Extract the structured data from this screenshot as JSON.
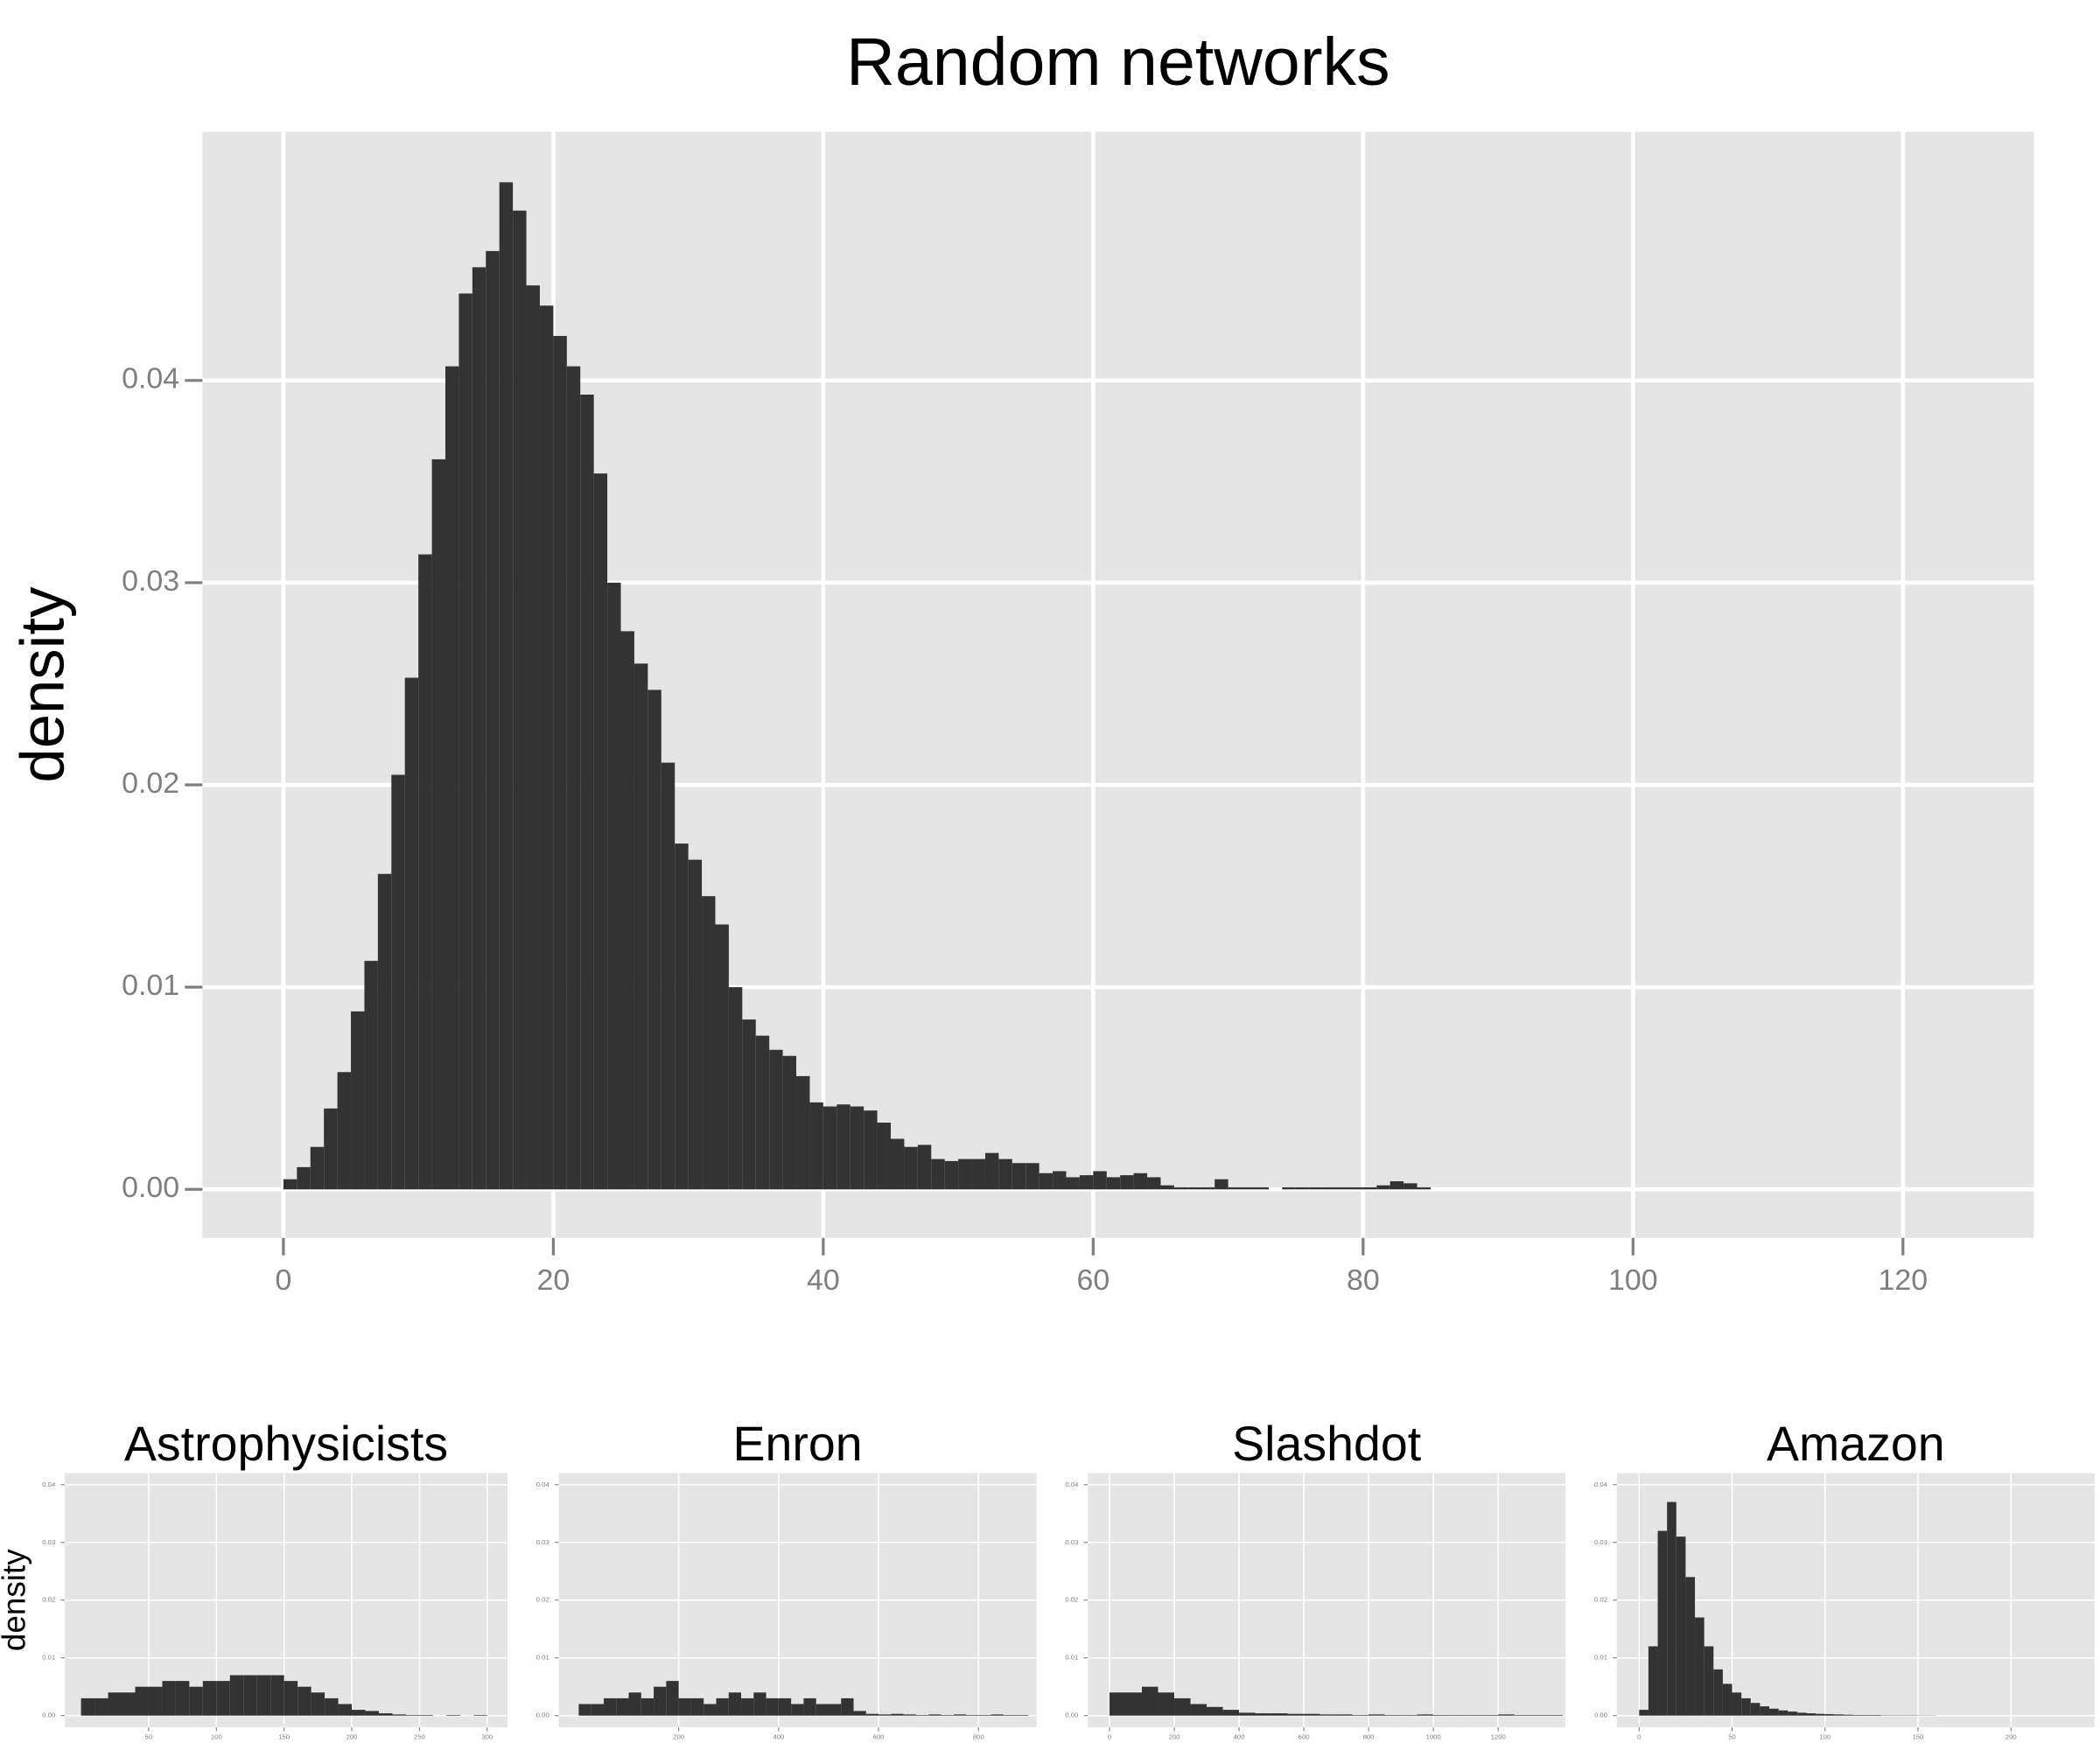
{
  "chart_data": [
    {
      "type": "histogram",
      "title": "Random networks",
      "y_label": "density",
      "color": "#333333",
      "grid": true,
      "bins": [
        0,
        1,
        2,
        3,
        4,
        5,
        6,
        7,
        8,
        9,
        10,
        11,
        12,
        13,
        14,
        15,
        16,
        17,
        18,
        19,
        20,
        21,
        22,
        23,
        24,
        25,
        26,
        27,
        28,
        29,
        30,
        31,
        32,
        33,
        34,
        35,
        36,
        37,
        38,
        39,
        40,
        41,
        42,
        43,
        44,
        45,
        46,
        47,
        48,
        49,
        50,
        51,
        52,
        53,
        54,
        55,
        56,
        57,
        58,
        59,
        60,
        61,
        62,
        63,
        64,
        65,
        66,
        67,
        68,
        69,
        70,
        71,
        72,
        73,
        74,
        75,
        76,
        77,
        78,
        79,
        80,
        81,
        82,
        83,
        84,
        85
      ],
      "values": [
        0.0005,
        0.0011,
        0.0021,
        0.004,
        0.0058,
        0.0088,
        0.0113,
        0.0156,
        0.0205,
        0.0253,
        0.0314,
        0.0361,
        0.0407,
        0.0443,
        0.0456,
        0.0464,
        0.0498,
        0.0484,
        0.0447,
        0.0437,
        0.0422,
        0.0407,
        0.0393,
        0.0354,
        0.03,
        0.0276,
        0.026,
        0.0247,
        0.0211,
        0.0171,
        0.0163,
        0.0145,
        0.0131,
        0.01,
        0.0084,
        0.0076,
        0.0069,
        0.0066,
        0.0056,
        0.0043,
        0.0041,
        0.0042,
        0.0041,
        0.0039,
        0.0033,
        0.0025,
        0.0021,
        0.0022,
        0.0015,
        0.0014,
        0.0015,
        0.0015,
        0.0018,
        0.0015,
        0.0013,
        0.0013,
        0.0008,
        0.0009,
        0.0006,
        0.0007,
        0.0009,
        0.0006,
        0.0007,
        0.0008,
        0.0006,
        0.0002,
        0.0001,
        0.0001,
        0.0001,
        0.0005,
        0.0001,
        0.0001,
        0.0001,
        0,
        0.0001,
        0.0001,
        0.0001,
        0.0001,
        0.0001,
        0.0001,
        0.0001,
        0.0002,
        0.0004,
        0.0003,
        0.0001
      ],
      "xlim": [
        -6,
        129.7
      ],
      "ylim": [
        -0.0024,
        0.0523
      ],
      "xticks": [
        0,
        20,
        40,
        60,
        80,
        100,
        120
      ],
      "yticks": [
        {
          "value": 0,
          "label": "0.00"
        },
        0.01,
        0.02,
        0.03,
        0.04
      ]
    },
    {
      "type": "histogram",
      "title": "Astrophysicists",
      "y_label": "density",
      "color": "#333333",
      "grid": true,
      "bins": [
        0,
        10,
        20,
        30,
        40,
        50,
        60,
        70,
        80,
        90,
        100,
        110,
        120,
        130,
        140,
        150,
        160,
        170,
        180,
        190,
        200,
        210,
        220,
        230,
        240,
        250,
        260,
        270,
        280,
        290,
        300
      ],
      "values": [
        0.003,
        0.003,
        0.004,
        0.004,
        0.005,
        0.005,
        0.006,
        0.006,
        0.005,
        0.006,
        0.006,
        0.007,
        0.007,
        0.007,
        0.007,
        0.006,
        0.005,
        0.004,
        0.003,
        0.002,
        0.001,
        0.0008,
        0.0004,
        0.0002,
        0.0001,
        0.0001,
        0,
        0.0001,
        0,
        0.0001
      ],
      "xlim": [
        -12,
        315
      ],
      "ylim": [
        -0.002,
        0.042
      ],
      "xticks": [
        50,
        100,
        150,
        200,
        250,
        300
      ],
      "yticks": [
        {
          "value": 0,
          "label": "0.00"
        },
        0.01,
        0.02,
        0.03,
        0.04
      ]
    },
    {
      "type": "histogram",
      "title": "Enron",
      "color": "#333333",
      "grid": true,
      "bins": [
        0,
        25,
        50,
        75,
        100,
        125,
        150,
        175,
        200,
        225,
        250,
        275,
        300,
        325,
        350,
        375,
        400,
        425,
        450,
        475,
        500,
        525,
        550,
        575,
        600,
        625,
        650,
        675,
        700,
        725,
        750,
        775,
        800,
        825,
        850,
        875,
        900
      ],
      "values": [
        0.002,
        0.002,
        0.003,
        0.003,
        0.004,
        0.003,
        0.005,
        0.006,
        0.003,
        0.003,
        0.002,
        0.003,
        0.004,
        0.003,
        0.004,
        0.003,
        0.003,
        0.002,
        0.003,
        0.002,
        0.002,
        0.003,
        0.0008,
        0.0003,
        0.0002,
        0.0003,
        0.0002,
        0.0001,
        0.0002,
        0.0001,
        0.0002,
        0.0001,
        0.0001,
        0.0002,
        0.0001,
        0.0001
      ],
      "xlim": [
        -40,
        916
      ],
      "ylim": [
        -0.002,
        0.042
      ],
      "xticks": [
        200,
        400,
        600,
        800
      ],
      "yticks": [
        {
          "value": 0,
          "label": "0.00"
        },
        0.01,
        0.02,
        0.03,
        0.04
      ]
    },
    {
      "type": "histogram",
      "title": "Slashdot",
      "color": "#333333",
      "grid": true,
      "bins": [
        0,
        50,
        100,
        150,
        200,
        250,
        300,
        350,
        400,
        450,
        500,
        550,
        600,
        650,
        700,
        750,
        800,
        850,
        900,
        950,
        1000,
        1050,
        1100,
        1150,
        1200,
        1250,
        1300,
        1350,
        1400
      ],
      "values": [
        0.004,
        0.004,
        0.005,
        0.004,
        0.003,
        0.002,
        0.0015,
        0.001,
        0.0005,
        0.0004,
        0.0004,
        0.0003,
        0.0003,
        0.0002,
        0.0002,
        0.0001,
        0.0002,
        0.0001,
        0.0001,
        0.0002,
        0.0001,
        0.0001,
        0.0001,
        0.0001,
        0.0002,
        0.0001,
        0.0001,
        0.0001
      ],
      "xlim": [
        -67,
        1408
      ],
      "ylim": [
        -0.002,
        0.042
      ],
      "xticks": [
        0,
        200,
        400,
        600,
        800,
        1000,
        1200
      ],
      "yticks": [
        {
          "value": 0,
          "label": "0.00"
        },
        0.01,
        0.02,
        0.03,
        0.04
      ]
    },
    {
      "type": "histogram",
      "title": "Amazon",
      "color": "#333333",
      "grid": true,
      "bins": [
        0,
        5,
        10,
        15,
        20,
        25,
        30,
        35,
        40,
        45,
        50,
        55,
        60,
        65,
        70,
        75,
        80,
        85,
        90,
        95,
        100,
        105,
        110,
        115,
        120,
        125,
        130,
        135,
        140,
        145,
        150,
        155,
        160
      ],
      "values": [
        0.001,
        0.012,
        0.032,
        0.037,
        0.031,
        0.024,
        0.017,
        0.012,
        0.008,
        0.0055,
        0.004,
        0.003,
        0.0022,
        0.0016,
        0.0012,
        0.0009,
        0.0007,
        0.0005,
        0.0004,
        0.0003,
        0.00025,
        0.0002,
        0.00015,
        0.0001,
        0.0001,
        0.0001,
        5e-05,
        5e-05,
        5e-05,
        5e-05,
        3e-05,
        3e-05
      ],
      "xlim": [
        -12,
        245
      ],
      "ylim": [
        -0.002,
        0.042
      ],
      "xticks": [
        0,
        50,
        100,
        150,
        200
      ],
      "yticks": [
        {
          "value": 0,
          "label": "0.00"
        },
        0.01,
        0.02,
        0.03,
        0.04
      ]
    }
  ]
}
